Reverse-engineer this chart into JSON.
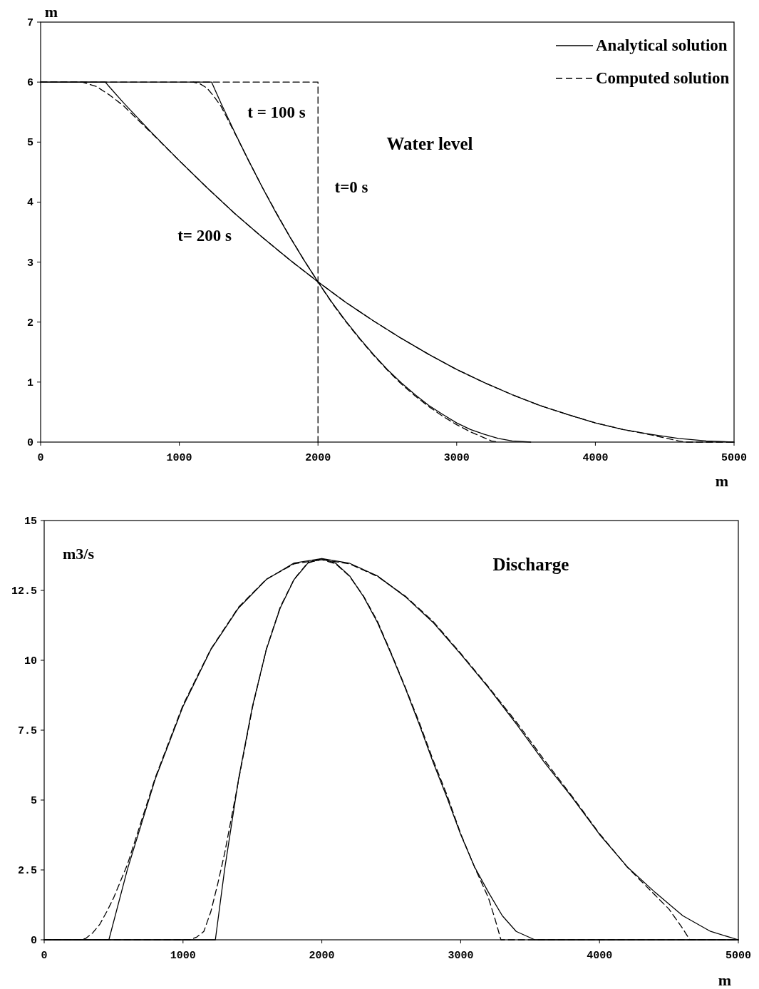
{
  "chart_data": [
    {
      "type": "line",
      "title": "Water level",
      "xlabel": "m",
      "ylabel": "m",
      "xlim": [
        0,
        5000
      ],
      "ylim": [
        0,
        7
      ],
      "xticks": [
        0,
        1000,
        2000,
        3000,
        4000,
        5000
      ],
      "yticks": [
        0,
        1,
        2,
        3,
        4,
        5,
        6,
        7
      ],
      "legend": "top right",
      "annotations": [
        "t = 100 s",
        "t=0 s",
        "t= 200 s"
      ],
      "series": [
        {
          "name": "Analytical solution",
          "color": "#000000",
          "line_style": "solid",
          "x": [
            0,
            1233,
            1300,
            1400,
            1500,
            1600,
            1700,
            1800,
            1900,
            2000,
            2100,
            2200,
            2300,
            2400,
            2500,
            2600,
            2700,
            2800,
            2900,
            3000,
            3100,
            3200,
            3300,
            3400,
            3534
          ],
          "values": [
            6,
            6,
            5.65,
            5.16,
            4.69,
            4.24,
            3.81,
            3.41,
            3.03,
            2.67,
            2.33,
            2.02,
            1.73,
            1.46,
            1.21,
            0.99,
            0.79,
            0.61,
            0.46,
            0.32,
            0.21,
            0.13,
            0.06,
            0.02,
            0
          ]
        },
        {
          "color": "#000000",
          "line_style": "solid",
          "x": [
            0,
            466,
            500,
            600,
            800,
            1000,
            1200,
            1400,
            1600,
            1800,
            2000,
            2200,
            2400,
            2600,
            2800,
            3000,
            3200,
            3400,
            3600,
            3800,
            4000,
            4200,
            4400,
            4600,
            4800,
            5000
          ],
          "values": [
            6,
            6,
            5.91,
            5.65,
            5.16,
            4.69,
            4.24,
            3.81,
            3.41,
            3.03,
            2.67,
            2.33,
            2.02,
            1.73,
            1.46,
            1.21,
            0.99,
            0.79,
            0.61,
            0.46,
            0.32,
            0.21,
            0.13,
            0.06,
            0.02,
            0
          ]
        },
        {
          "name": "Computed solution",
          "color": "#000000",
          "line_style": "dashed",
          "x": [
            0,
            1100,
            1150,
            1200,
            1250,
            1300,
            1400,
            1500,
            1600,
            1700,
            1800,
            1900,
            2000,
            2100,
            2200,
            2300,
            2400,
            2500,
            2600,
            2700,
            2800,
            2900,
            3000,
            3100,
            3200,
            3250,
            3300
          ],
          "values": [
            6,
            6,
            5.97,
            5.9,
            5.76,
            5.6,
            5.15,
            4.69,
            4.24,
            3.82,
            3.41,
            3.03,
            2.67,
            2.32,
            2.01,
            1.72,
            1.45,
            1.2,
            0.97,
            0.77,
            0.59,
            0.43,
            0.29,
            0.17,
            0.07,
            0.02,
            0
          ]
        },
        {
          "color": "#000000",
          "line_style": "dashed",
          "x": [
            0,
            300,
            400,
            500,
            600,
            800,
            1000,
            1200,
            1400,
            1600,
            1800,
            2000,
            2200,
            2400,
            2600,
            2800,
            3000,
            3200,
            3400,
            3600,
            3800,
            4000,
            4200,
            4400,
            4500,
            4600,
            4650,
            5000
          ],
          "values": [
            6,
            6,
            5.93,
            5.78,
            5.6,
            5.15,
            4.69,
            4.24,
            3.81,
            3.41,
            3.03,
            2.67,
            2.33,
            2.02,
            1.73,
            1.46,
            1.21,
            0.99,
            0.79,
            0.61,
            0.46,
            0.32,
            0.21,
            0.12,
            0.07,
            0.02,
            0,
            0
          ]
        },
        {
          "color": "#000000",
          "line_style": "dashed",
          "x": [
            1100,
            2000,
            2000
          ],
          "values": [
            6,
            6,
            0
          ]
        }
      ]
    },
    {
      "type": "line",
      "title": "Discharge",
      "xlabel": "m",
      "ylabel": "m3/s",
      "xlim": [
        0,
        5000
      ],
      "ylim": [
        0,
        15
      ],
      "xticks": [
        0,
        1000,
        2000,
        3000,
        4000,
        5000
      ],
      "yticks": [
        0,
        2.5,
        5,
        7.5,
        10,
        12.5,
        15
      ],
      "legend": false,
      "series": [
        {
          "color": "#000000",
          "line_style": "solid",
          "x": [
            0,
            1233,
            1300,
            1400,
            1500,
            1600,
            1700,
            1800,
            1900,
            2000,
            2100,
            2200,
            2300,
            2400,
            2500,
            2600,
            2700,
            2800,
            2900,
            3000,
            3100,
            3200,
            3300,
            3400,
            3534,
            5000
          ],
          "values": [
            0,
            0,
            2.53,
            5.75,
            8.35,
            10.38,
            11.87,
            12.89,
            13.48,
            13.64,
            13.47,
            13.02,
            12.28,
            11.36,
            10.22,
            9.02,
            7.73,
            6.37,
            5.11,
            3.77,
            2.61,
            1.7,
            0.86,
            0.3,
            0,
            0
          ]
        },
        {
          "color": "#000000",
          "line_style": "solid",
          "x": [
            0,
            466,
            600,
            800,
            1000,
            1200,
            1400,
            1600,
            1800,
            2000,
            2200,
            2400,
            2600,
            2800,
            3000,
            3200,
            3400,
            3600,
            3800,
            4000,
            4200,
            4400,
            4600,
            4800,
            5000
          ],
          "values": [
            0,
            0,
            2.53,
            5.75,
            8.35,
            10.38,
            11.87,
            12.89,
            13.48,
            13.64,
            13.47,
            13.02,
            12.28,
            11.36,
            10.22,
            9.02,
            7.73,
            6.37,
            5.11,
            3.77,
            2.61,
            1.7,
            0.86,
            0.3,
            0
          ]
        },
        {
          "color": "#000000",
          "line_style": "dashed",
          "x": [
            0,
            1050,
            1100,
            1150,
            1200,
            1250,
            1300,
            1400,
            1500,
            1600,
            1700,
            1800,
            1900,
            2000,
            2100,
            2200,
            2300,
            2400,
            2500,
            2600,
            2700,
            2800,
            2900,
            3000,
            3100,
            3200,
            3250,
            3290,
            5000
          ],
          "values": [
            0,
            0,
            0.1,
            0.3,
            1.0,
            2.0,
            3.1,
            5.7,
            8.3,
            10.4,
            11.9,
            12.9,
            13.5,
            13.6,
            13.45,
            13.0,
            12.3,
            11.4,
            10.25,
            9.05,
            7.8,
            6.45,
            5.2,
            3.8,
            2.6,
            1.5,
            0.7,
            0,
            0
          ]
        },
        {
          "color": "#000000",
          "line_style": "dashed",
          "x": [
            0,
            250,
            300,
            350,
            400,
            450,
            500,
            600,
            800,
            1000,
            1200,
            1400,
            1600,
            1800,
            2000,
            2200,
            2400,
            2600,
            2800,
            3000,
            3200,
            3400,
            3600,
            3800,
            4000,
            4200,
            4400,
            4500,
            4600,
            4650,
            5000
          ],
          "values": [
            0,
            0,
            0.05,
            0.25,
            0.55,
            1.0,
            1.5,
            2.7,
            5.8,
            8.4,
            10.4,
            11.9,
            12.9,
            13.45,
            13.6,
            13.45,
            13.0,
            12.3,
            11.4,
            10.25,
            9.05,
            7.8,
            6.45,
            5.15,
            3.8,
            2.6,
            1.6,
            1.1,
            0.4,
            0,
            0
          ]
        }
      ]
    }
  ]
}
